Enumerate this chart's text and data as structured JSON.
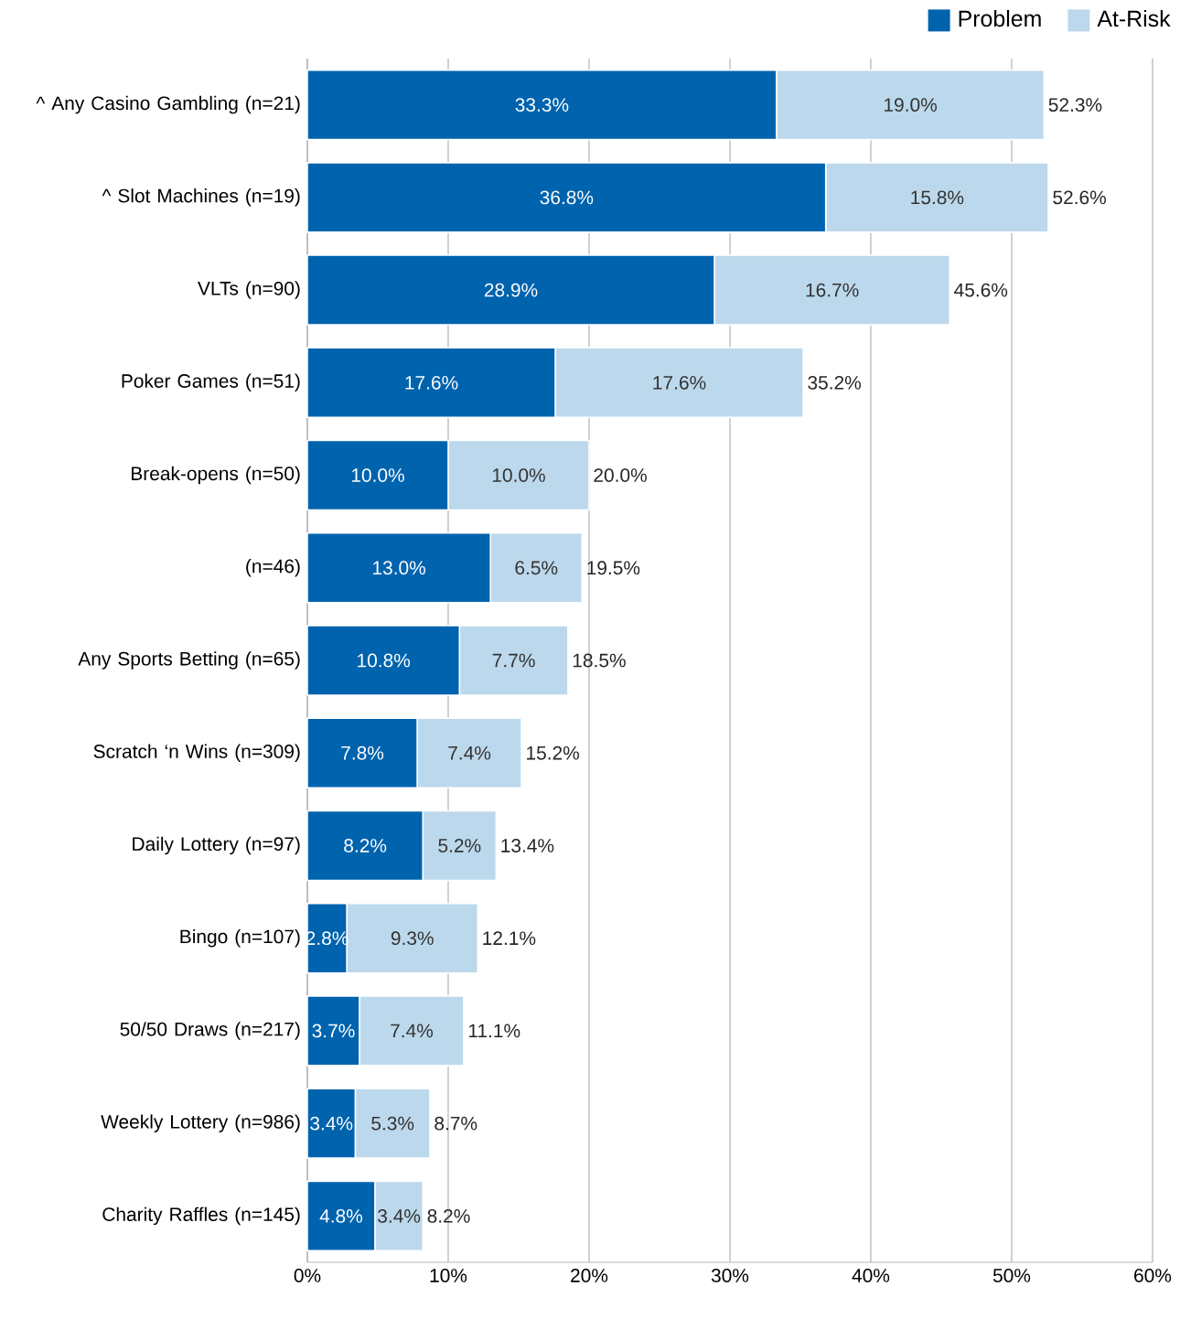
{
  "chart_data": {
    "type": "bar",
    "orientation": "horizontal",
    "stacked": true,
    "categories": [
      "^ Any Casino Gambling (n=21)",
      "^ Slot Machines (n=19)",
      "VLTs (n=90)",
      "Poker Games (n=51)",
      "Break-opens (n=50)",
      "(n=46)",
      "Any Sports Betting (n=65)",
      "Scratch ‘n Wins (n=309)",
      "Daily Lottery (n=97)",
      "Bingo (n=107)",
      "50/50 Draws (n=217)",
      "Weekly Lottery (n=986)",
      "Charity Raffles (n=145)"
    ],
    "series": [
      {
        "name": "Problem",
        "color": "#0063ae",
        "values": [
          33.3,
          36.8,
          28.9,
          17.6,
          10.0,
          13.0,
          10.8,
          7.8,
          8.2,
          2.8,
          3.7,
          3.4,
          4.8
        ],
        "value_labels": [
          "33.3%",
          "36.8%",
          "28.9%",
          "17.6%",
          "10.0%",
          "13.0%",
          "10.8%",
          "7.8%",
          "8.2%",
          "2.8%",
          "3.7%",
          "3.4%",
          "4.8%"
        ]
      },
      {
        "name": "At-Risk",
        "color": "#bcd8ec",
        "values": [
          19.0,
          15.8,
          16.7,
          17.6,
          10.0,
          6.5,
          7.7,
          7.4,
          5.2,
          9.3,
          7.4,
          5.3,
          3.4
        ],
        "value_labels": [
          "19.0%",
          "15.8%",
          "16.7%",
          "17.6%",
          "10.0%",
          "6.5%",
          "7.7%",
          "7.4%",
          "5.2%",
          "9.3%",
          "7.4%",
          "5.3%",
          "3.4%"
        ]
      }
    ],
    "totals": [
      "52.3%",
      "52.6%",
      "45.6%",
      "35.2%",
      "20.0%",
      "19.5%",
      "18.5%",
      "15.2%",
      "13.4%",
      "12.1%",
      "11.1%",
      "8.7%",
      "8.2%"
    ],
    "xlim": [
      0,
      60
    ],
    "xticks": [
      {
        "value": 0,
        "label": "0%"
      },
      {
        "value": 10,
        "label": "10%"
      },
      {
        "value": 20,
        "label": "20%"
      },
      {
        "value": 30,
        "label": "30%"
      },
      {
        "value": 40,
        "label": "40%"
      },
      {
        "value": 50,
        "label": "50%"
      },
      {
        "value": 60,
        "label": "60%"
      }
    ],
    "grid": "x",
    "legend": "top right"
  }
}
